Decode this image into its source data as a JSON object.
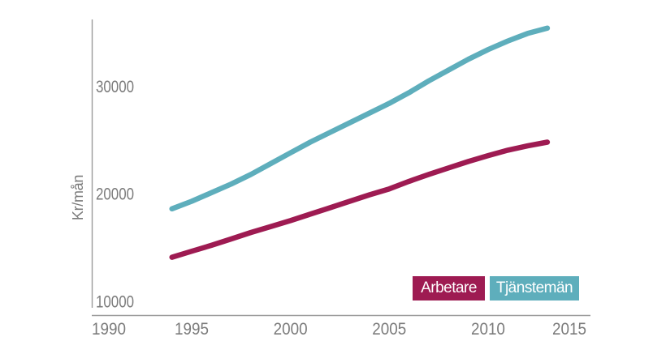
{
  "chart_data": {
    "type": "line",
    "title": "",
    "ylabel": "Kr/mån",
    "x": [
      1994,
      1995,
      1996,
      1997,
      1998,
      1999,
      2000,
      2001,
      2002,
      2003,
      2004,
      2005,
      2006,
      2007,
      2008,
      2009,
      2010,
      2011,
      2012,
      2013
    ],
    "series": [
      {
        "name": "Arbetare",
        "color": "#9E1B52",
        "values": [
          14100,
          14650,
          15200,
          15800,
          16400,
          16950,
          17500,
          18100,
          18700,
          19300,
          19900,
          20450,
          21150,
          21800,
          22400,
          23000,
          23550,
          24050,
          24450,
          24800
        ]
      },
      {
        "name": "Tjänstemän",
        "color": "#5EAEBC",
        "values": [
          18600,
          19300,
          20100,
          20900,
          21800,
          22800,
          23800,
          24800,
          25700,
          26600,
          27500,
          28400,
          29400,
          30500,
          31500,
          32500,
          33400,
          34200,
          34900,
          35400
        ]
      }
    ],
    "x_tick_labels": [
      "1990",
      "1995",
      "2000",
      "2005",
      "2010",
      "2015"
    ],
    "x_tick_years": [
      1990,
      1995,
      2000,
      2005,
      2010,
      2015
    ],
    "y_tick_labels": [
      "10000",
      "20000",
      "30000"
    ],
    "y_tick_values": [
      10000,
      20000,
      30000
    ],
    "xlim": [
      1990,
      2015
    ],
    "ylim": [
      9400,
      36200
    ],
    "grid": false,
    "legend_position": "bottom-right",
    "axis_color": "#9C9C9C",
    "tick_text_color": "#7B7B7B",
    "background_color": "#FFFFFF"
  }
}
